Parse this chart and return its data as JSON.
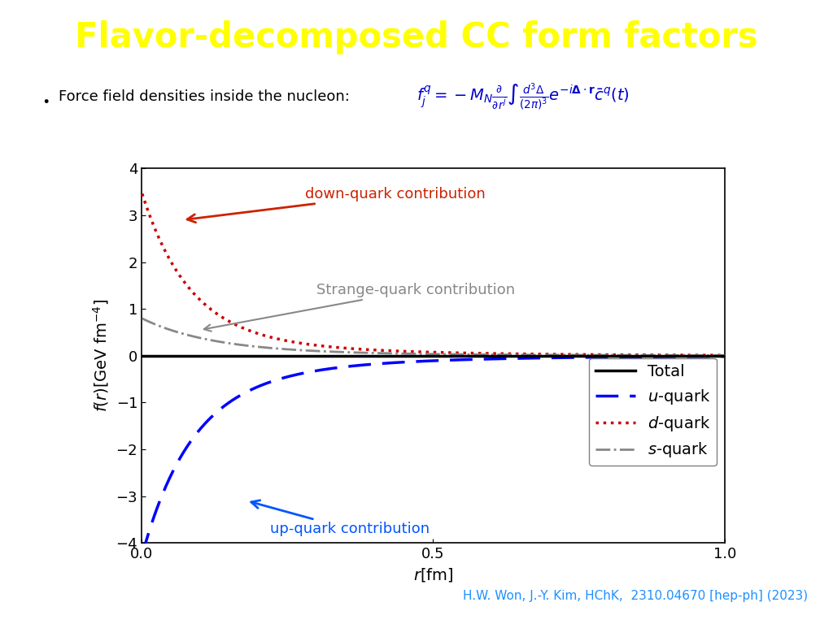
{
  "title": "Flavor-decomposed CC form factors",
  "title_color": "#FFFF00",
  "title_bg_color": "#0D2157",
  "title_fontsize": 30,
  "bg_color": "#FFFFFF",
  "xlabel": "$r$[fm]",
  "ylabel": "$f(r)$[GeV fm$^{-4}$]",
  "xlim": [
    0.0,
    1.0
  ],
  "ylim": [
    -4.0,
    4.0
  ],
  "yticks": [
    -4,
    -3,
    -2,
    -1,
    0,
    1,
    2,
    3,
    4
  ],
  "xticks": [
    0.0,
    0.5,
    1.0
  ],
  "total_color": "#000000",
  "u_color": "#0000FF",
  "d_color": "#CC0000",
  "s_color": "#888888",
  "annotation_up_text": "up-quark contribution",
  "annotation_up_color": "#0055FF",
  "annotation_down_text": "down-quark contribution",
  "annotation_down_color": "#CC2200",
  "annotation_strange_text": "Strange-quark contribution",
  "annotation_strange_color": "#888888",
  "reference_text": "H.W. Won, J.-Y. Kim, HChK,  2310.04670 [hep-ph] (2023)",
  "reference_color": "#1E90FF",
  "formula_color": "#0000CC"
}
